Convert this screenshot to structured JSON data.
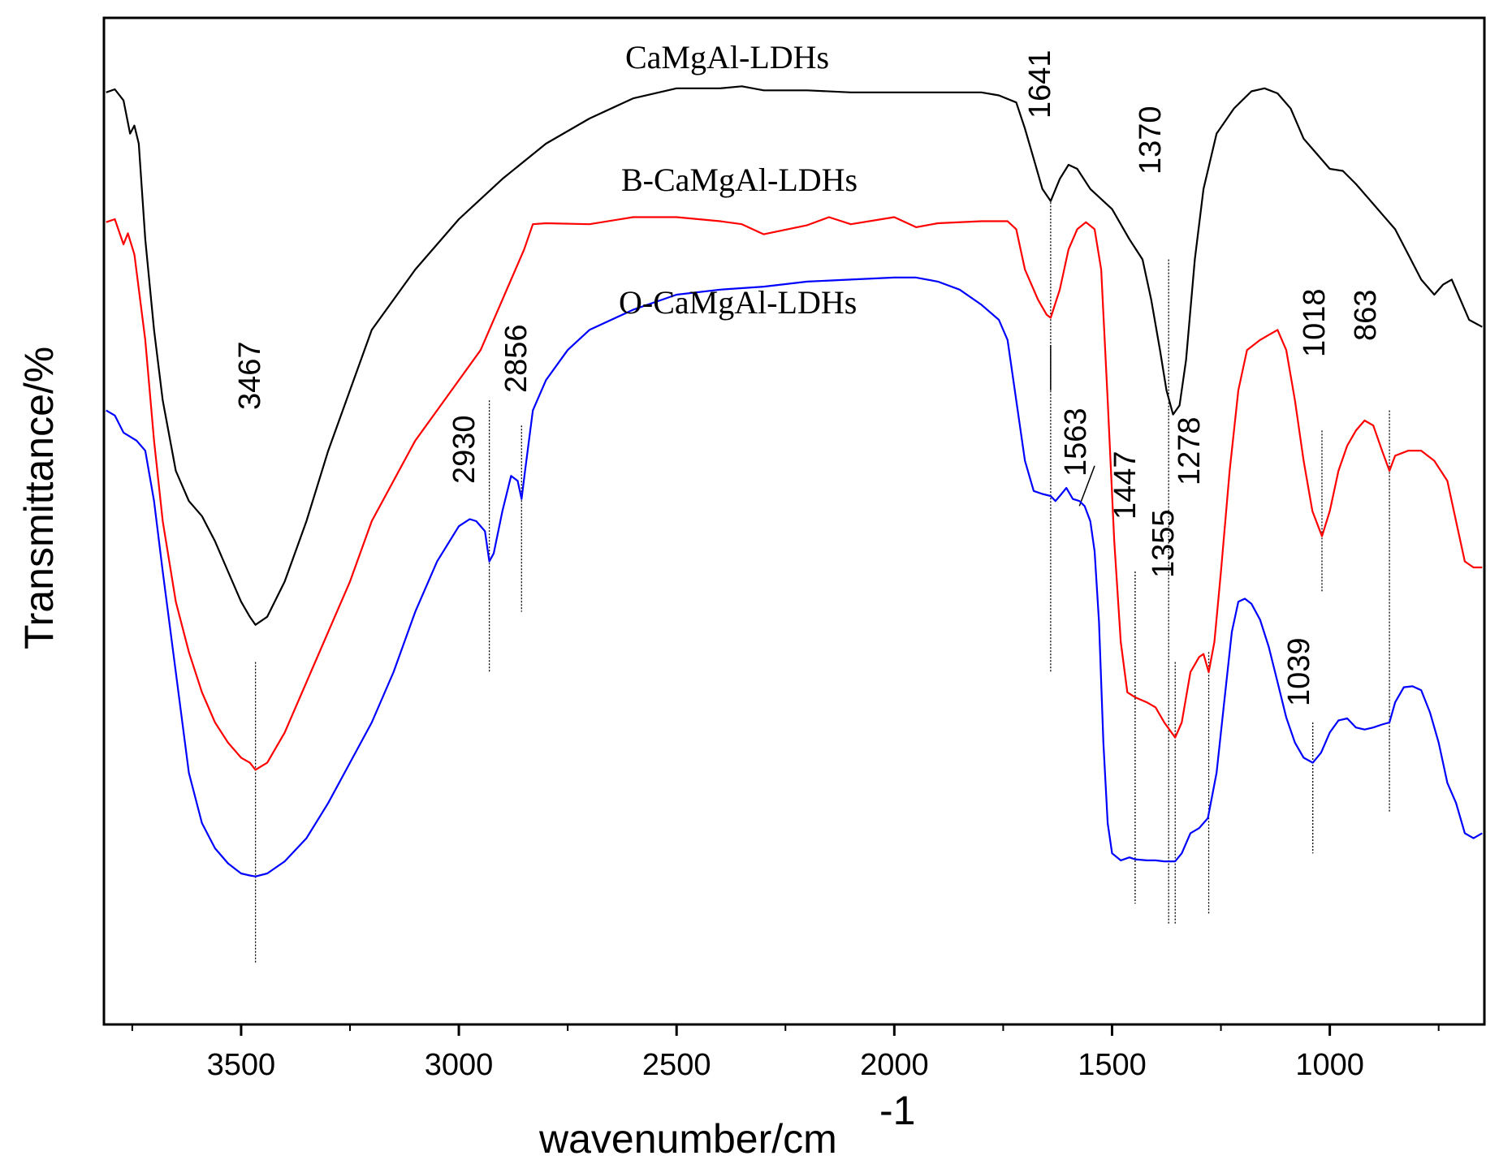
{
  "chart_data": {
    "type": "line",
    "title": "",
    "xlabel": "wavenumber/cm",
    "xlabel_superscript": "-1",
    "ylabel": "Transmittance/%",
    "xlim": [
      3815,
      645
    ],
    "ylim": [
      0,
      100
    ],
    "x_ticks": [
      3500,
      3000,
      2500,
      2000,
      1500,
      1000
    ],
    "x_tick_labels": [
      "3500",
      "3000",
      "2500",
      "2000",
      "1500",
      "1000"
    ],
    "y_ticks_shown": false,
    "grid": false,
    "legend": "inline labels above each curve",
    "series": [
      {
        "name": "CaMgAl-LDHs",
        "color": "#000000",
        "points": [
          [
            3810,
            92.6
          ],
          [
            3790,
            92.9
          ],
          [
            3770,
            91.8
          ],
          [
            3755,
            88.5
          ],
          [
            3745,
            89.3
          ],
          [
            3735,
            87.5
          ],
          [
            3720,
            78
          ],
          [
            3700,
            69
          ],
          [
            3680,
            62
          ],
          [
            3650,
            55
          ],
          [
            3620,
            52
          ],
          [
            3590,
            50.5
          ],
          [
            3560,
            48
          ],
          [
            3530,
            45
          ],
          [
            3500,
            42
          ],
          [
            3480,
            40.5
          ],
          [
            3467,
            39.7
          ],
          [
            3440,
            40.5
          ],
          [
            3400,
            44
          ],
          [
            3350,
            50
          ],
          [
            3300,
            57
          ],
          [
            3250,
            63
          ],
          [
            3200,
            69
          ],
          [
            3100,
            75
          ],
          [
            3000,
            80
          ],
          [
            2900,
            84
          ],
          [
            2800,
            87.5
          ],
          [
            2700,
            90
          ],
          [
            2600,
            92
          ],
          [
            2500,
            93
          ],
          [
            2400,
            93
          ],
          [
            2350,
            93.2
          ],
          [
            2300,
            92.8
          ],
          [
            2200,
            92.8
          ],
          [
            2100,
            92.6
          ],
          [
            2000,
            92.6
          ],
          [
            1900,
            92.6
          ],
          [
            1800,
            92.6
          ],
          [
            1760,
            92.3
          ],
          [
            1720,
            91.6
          ],
          [
            1700,
            89
          ],
          [
            1680,
            86
          ],
          [
            1660,
            83
          ],
          [
            1641,
            81.8
          ],
          [
            1620,
            84
          ],
          [
            1600,
            85.4
          ],
          [
            1580,
            85
          ],
          [
            1550,
            83
          ],
          [
            1500,
            81
          ],
          [
            1460,
            78
          ],
          [
            1430,
            76
          ],
          [
            1410,
            72
          ],
          [
            1390,
            67
          ],
          [
            1375,
            63
          ],
          [
            1360,
            60.6
          ],
          [
            1345,
            61.5
          ],
          [
            1330,
            66
          ],
          [
            1310,
            76
          ],
          [
            1290,
            83
          ],
          [
            1260,
            88.5
          ],
          [
            1220,
            91
          ],
          [
            1180,
            92.7
          ],
          [
            1150,
            93
          ],
          [
            1120,
            92.5
          ],
          [
            1090,
            91
          ],
          [
            1060,
            88
          ],
          [
            1030,
            86.5
          ],
          [
            1000,
            85
          ],
          [
            970,
            84.8
          ],
          [
            940,
            83.5
          ],
          [
            910,
            82
          ],
          [
            880,
            80.5
          ],
          [
            850,
            79
          ],
          [
            820,
            76.5
          ],
          [
            790,
            74
          ],
          [
            760,
            72.5
          ],
          [
            740,
            73.5
          ],
          [
            720,
            74
          ],
          [
            700,
            72
          ],
          [
            680,
            70
          ],
          [
            650,
            69.3
          ]
        ]
      },
      {
        "name": "B-CaMgAl-LDHs",
        "color": "#ff0000",
        "points": [
          [
            3810,
            79.7
          ],
          [
            3790,
            80
          ],
          [
            3770,
            77.5
          ],
          [
            3760,
            78.6
          ],
          [
            3745,
            76.5
          ],
          [
            3720,
            68
          ],
          [
            3700,
            58
          ],
          [
            3680,
            50
          ],
          [
            3650,
            42
          ],
          [
            3620,
            37
          ],
          [
            3590,
            33
          ],
          [
            3560,
            30
          ],
          [
            3530,
            28
          ],
          [
            3500,
            26.5
          ],
          [
            3480,
            26
          ],
          [
            3467,
            25.3
          ],
          [
            3440,
            26
          ],
          [
            3400,
            29
          ],
          [
            3350,
            34
          ],
          [
            3300,
            39
          ],
          [
            3250,
            44
          ],
          [
            3200,
            50
          ],
          [
            3100,
            58
          ],
          [
            3000,
            64
          ],
          [
            2950,
            67
          ],
          [
            2900,
            72
          ],
          [
            2850,
            77
          ],
          [
            2830,
            79.5
          ],
          [
            2800,
            79.6
          ],
          [
            2700,
            79.5
          ],
          [
            2600,
            80.2
          ],
          [
            2500,
            80.2
          ],
          [
            2400,
            79.8
          ],
          [
            2350,
            79.5
          ],
          [
            2300,
            78.5
          ],
          [
            2200,
            79.4
          ],
          [
            2150,
            80.2
          ],
          [
            2100,
            79.5
          ],
          [
            2000,
            80.2
          ],
          [
            1950,
            79.2
          ],
          [
            1900,
            79.6
          ],
          [
            1800,
            79.8
          ],
          [
            1740,
            79.8
          ],
          [
            1720,
            79
          ],
          [
            1700,
            75
          ],
          [
            1670,
            72
          ],
          [
            1650,
            70.5
          ],
          [
            1641,
            70.2
          ],
          [
            1620,
            73
          ],
          [
            1600,
            77
          ],
          [
            1580,
            79
          ],
          [
            1560,
            79.7
          ],
          [
            1540,
            79
          ],
          [
            1525,
            75
          ],
          [
            1510,
            62
          ],
          [
            1495,
            48
          ],
          [
            1480,
            38
          ],
          [
            1465,
            33
          ],
          [
            1447,
            32.5
          ],
          [
            1420,
            32
          ],
          [
            1400,
            31.5
          ],
          [
            1380,
            30
          ],
          [
            1355,
            28.5
          ],
          [
            1340,
            30
          ],
          [
            1320,
            35
          ],
          [
            1300,
            36.5
          ],
          [
            1290,
            36.8
          ],
          [
            1278,
            35
          ],
          [
            1265,
            38
          ],
          [
            1250,
            45
          ],
          [
            1230,
            55
          ],
          [
            1210,
            63
          ],
          [
            1190,
            67
          ],
          [
            1160,
            68
          ],
          [
            1140,
            68.5
          ],
          [
            1120,
            69
          ],
          [
            1100,
            67
          ],
          [
            1080,
            62
          ],
          [
            1060,
            56
          ],
          [
            1040,
            51
          ],
          [
            1018,
            48.5
          ],
          [
            1000,
            51
          ],
          [
            980,
            55
          ],
          [
            960,
            57.5
          ],
          [
            940,
            59
          ],
          [
            920,
            60
          ],
          [
            900,
            59.5
          ],
          [
            880,
            57
          ],
          [
            863,
            55
          ],
          [
            850,
            56.5
          ],
          [
            820,
            57
          ],
          [
            790,
            57
          ],
          [
            760,
            56
          ],
          [
            730,
            54
          ],
          [
            710,
            50
          ],
          [
            690,
            46
          ],
          [
            670,
            45.4
          ],
          [
            650,
            45.4
          ]
        ]
      },
      {
        "name": "O-CaMgAl-LDHs",
        "color": "#0000ff",
        "points": [
          [
            3810,
            61
          ],
          [
            3790,
            60.5
          ],
          [
            3770,
            58.8
          ],
          [
            3740,
            58
          ],
          [
            3720,
            57
          ],
          [
            3700,
            52
          ],
          [
            3680,
            45
          ],
          [
            3650,
            35
          ],
          [
            3620,
            25
          ],
          [
            3590,
            20
          ],
          [
            3560,
            17.5
          ],
          [
            3530,
            16
          ],
          [
            3500,
            15
          ],
          [
            3480,
            14.8
          ],
          [
            3467,
            14.7
          ],
          [
            3440,
            15
          ],
          [
            3400,
            16.2
          ],
          [
            3350,
            18.5
          ],
          [
            3300,
            22
          ],
          [
            3250,
            26
          ],
          [
            3200,
            30
          ],
          [
            3150,
            35
          ],
          [
            3100,
            41
          ],
          [
            3050,
            46
          ],
          [
            3000,
            49.5
          ],
          [
            2975,
            50.2
          ],
          [
            2960,
            50
          ],
          [
            2940,
            49
          ],
          [
            2930,
            46
          ],
          [
            2920,
            46.8
          ],
          [
            2900,
            51
          ],
          [
            2880,
            54.5
          ],
          [
            2865,
            54
          ],
          [
            2856,
            52.2
          ],
          [
            2848,
            55
          ],
          [
            2830,
            61
          ],
          [
            2800,
            64
          ],
          [
            2750,
            67
          ],
          [
            2700,
            69
          ],
          [
            2600,
            71
          ],
          [
            2500,
            72.5
          ],
          [
            2400,
            73
          ],
          [
            2300,
            73.3
          ],
          [
            2200,
            73.8
          ],
          [
            2100,
            74
          ],
          [
            2000,
            74.2
          ],
          [
            1950,
            74.2
          ],
          [
            1900,
            73.8
          ],
          [
            1850,
            73
          ],
          [
            1800,
            71.5
          ],
          [
            1760,
            70
          ],
          [
            1740,
            68
          ],
          [
            1720,
            62
          ],
          [
            1700,
            56
          ],
          [
            1680,
            53
          ],
          [
            1660,
            52.7
          ],
          [
            1641,
            52.5
          ],
          [
            1630,
            52
          ],
          [
            1620,
            52.5
          ],
          [
            1605,
            53.3
          ],
          [
            1590,
            52.2
          ],
          [
            1575,
            52
          ],
          [
            1563,
            51.5
          ],
          [
            1550,
            50
          ],
          [
            1540,
            47
          ],
          [
            1530,
            40
          ],
          [
            1520,
            28
          ],
          [
            1510,
            20
          ],
          [
            1500,
            17
          ],
          [
            1480,
            16.3
          ],
          [
            1460,
            16.6
          ],
          [
            1447,
            16.4
          ],
          [
            1420,
            16.3
          ],
          [
            1400,
            16.3
          ],
          [
            1380,
            16.2
          ],
          [
            1355,
            16.2
          ],
          [
            1340,
            17
          ],
          [
            1320,
            19
          ],
          [
            1300,
            19.5
          ],
          [
            1280,
            20.5
          ],
          [
            1260,
            25
          ],
          [
            1240,
            33
          ],
          [
            1225,
            39
          ],
          [
            1210,
            42
          ],
          [
            1195,
            42.3
          ],
          [
            1180,
            41.8
          ],
          [
            1160,
            40.2
          ],
          [
            1140,
            37.5
          ],
          [
            1120,
            34
          ],
          [
            1100,
            30.5
          ],
          [
            1080,
            28
          ],
          [
            1060,
            26.5
          ],
          [
            1039,
            26
          ],
          [
            1020,
            27
          ],
          [
            1000,
            29
          ],
          [
            980,
            30.2
          ],
          [
            960,
            30.4
          ],
          [
            940,
            29.5
          ],
          [
            920,
            29.3
          ],
          [
            900,
            29.5
          ],
          [
            880,
            29.8
          ],
          [
            863,
            30
          ],
          [
            850,
            32
          ],
          [
            830,
            33.5
          ],
          [
            810,
            33.6
          ],
          [
            790,
            33.2
          ],
          [
            770,
            31
          ],
          [
            750,
            28
          ],
          [
            730,
            24
          ],
          [
            710,
            22
          ],
          [
            690,
            19
          ],
          [
            670,
            18.5
          ],
          [
            650,
            19
          ]
        ]
      }
    ],
    "peak_annotations": [
      {
        "label": "3467",
        "x": 3467
      },
      {
        "label": "2930",
        "x": 2930
      },
      {
        "label": "2856",
        "x": 2856
      },
      {
        "label": "1641",
        "x": 1641
      },
      {
        "label": "1563",
        "x": 1563
      },
      {
        "label": "1447",
        "x": 1447
      },
      {
        "label": "1370",
        "x": 1370
      },
      {
        "label": "1355",
        "x": 1355
      },
      {
        "label": "1278",
        "x": 1278
      },
      {
        "label": "1039",
        "x": 1039
      },
      {
        "label": "1018",
        "x": 1018
      },
      {
        "label": "863",
        "x": 863
      }
    ]
  }
}
